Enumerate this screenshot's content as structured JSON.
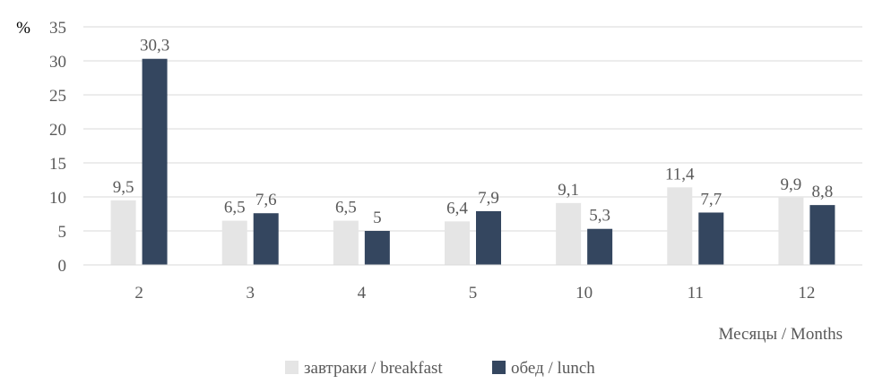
{
  "chart_data": {
    "type": "bar",
    "ylabel": "%",
    "xlabel": "Месяцы / Months",
    "categories": [
      "2",
      "3",
      "4",
      "5",
      "10",
      "11",
      "12"
    ],
    "ylim": [
      0,
      35
    ],
    "yticks": [
      "0",
      "5",
      "10",
      "15",
      "20",
      "25",
      "30",
      "35"
    ],
    "grid": true,
    "legend_position": "bottom",
    "series": [
      {
        "name": "завтраки / breakfast",
        "color": "#e5e5e5",
        "values": [
          9.5,
          6.5,
          6.5,
          6.4,
          9.1,
          11.4,
          9.9
        ],
        "labels": [
          "9,5",
          "6,5",
          "6,5",
          "6,4",
          "9,1",
          "11,4",
          "9,9"
        ]
      },
      {
        "name": "обед / lunch",
        "color": "#34465f",
        "values": [
          30.3,
          7.6,
          5,
          7.9,
          5.3,
          7.7,
          8.8
        ],
        "labels": [
          "30,3",
          "7,6",
          "5",
          "7,9",
          "5,3",
          "7,7",
          "8,8"
        ]
      }
    ]
  }
}
